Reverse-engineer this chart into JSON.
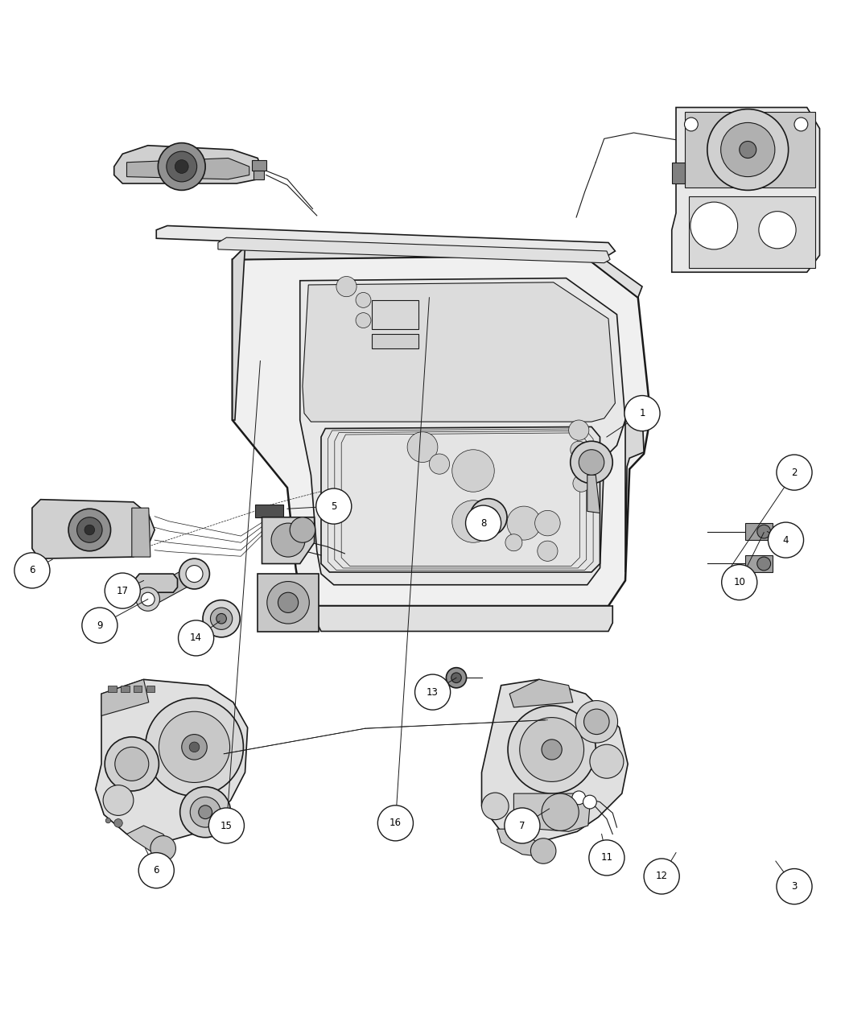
{
  "figure_width": 10.5,
  "figure_height": 12.75,
  "dpi": 100,
  "background_color": "#ffffff",
  "line_color": "#1a1a1a",
  "callout_circles": [
    [
      1,
      0.76,
      0.618
    ],
    [
      2,
      0.94,
      0.548
    ],
    [
      3,
      0.94,
      0.058
    ],
    [
      4,
      0.93,
      0.468
    ],
    [
      5,
      0.395,
      0.508
    ],
    [
      6,
      0.185,
      0.077
    ],
    [
      6,
      0.038,
      0.432
    ],
    [
      7,
      0.618,
      0.13
    ],
    [
      8,
      0.572,
      0.488
    ],
    [
      9,
      0.118,
      0.367
    ],
    [
      10,
      0.875,
      0.418
    ],
    [
      11,
      0.718,
      0.092
    ],
    [
      12,
      0.783,
      0.07
    ],
    [
      13,
      0.512,
      0.288
    ],
    [
      14,
      0.232,
      0.352
    ],
    [
      15,
      0.268,
      0.13
    ],
    [
      16,
      0.468,
      0.133
    ],
    [
      17,
      0.145,
      0.408
    ]
  ],
  "leader_lines": [
    [
      0.76,
      0.618,
      0.72,
      0.59
    ],
    [
      0.94,
      0.548,
      0.87,
      0.43
    ],
    [
      0.94,
      0.058,
      0.915,
      0.088
    ],
    [
      0.93,
      0.468,
      0.905,
      0.478
    ],
    [
      0.395,
      0.508,
      0.348,
      0.51
    ],
    [
      0.185,
      0.077,
      0.178,
      0.1
    ],
    [
      0.038,
      0.432,
      0.065,
      0.44
    ],
    [
      0.618,
      0.13,
      0.648,
      0.148
    ],
    [
      0.572,
      0.488,
      0.548,
      0.475
    ],
    [
      0.118,
      0.367,
      0.168,
      0.39
    ],
    [
      0.875,
      0.418,
      0.9,
      0.425
    ],
    [
      0.718,
      0.092,
      0.71,
      0.118
    ],
    [
      0.783,
      0.07,
      0.798,
      0.098
    ],
    [
      0.512,
      0.288,
      0.518,
      0.305
    ],
    [
      0.232,
      0.352,
      0.248,
      0.368
    ],
    [
      0.268,
      0.13,
      0.298,
      0.68
    ],
    [
      0.468,
      0.133,
      0.498,
      0.755
    ],
    [
      0.145,
      0.408,
      0.168,
      0.42
    ]
  ]
}
